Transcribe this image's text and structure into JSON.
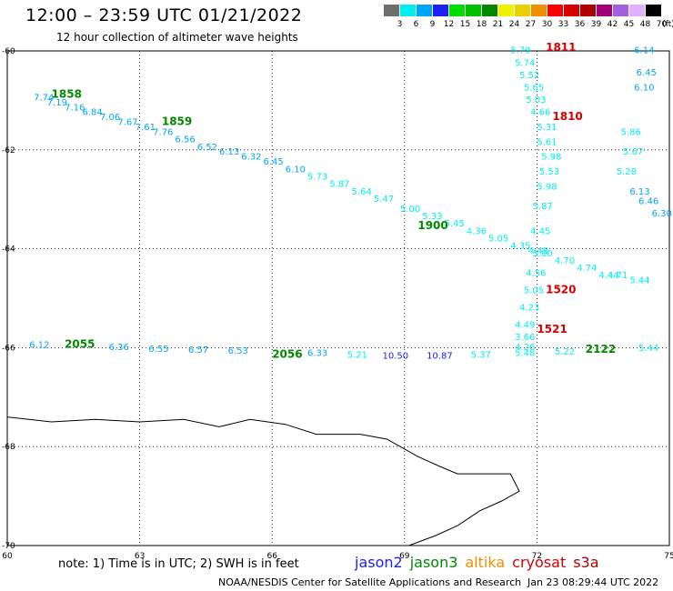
{
  "header": {
    "title": "12:00 – 23:59 UTC 01/21/2022",
    "subtitle": "12 hour collection of altimeter wave heights"
  },
  "color_scale": {
    "unit": "(ft)",
    "swatches": [
      {
        "label": "3",
        "color": "#6e6e6e"
      },
      {
        "label": "6",
        "color": "#00eef0"
      },
      {
        "label": "9",
        "color": "#00a6f5"
      },
      {
        "label": "12",
        "color": "#1a22f0"
      },
      {
        "label": "15",
        "color": "#00dd00"
      },
      {
        "label": "18",
        "color": "#00c000"
      },
      {
        "label": "21",
        "color": "#008800"
      },
      {
        "label": "24",
        "color": "#f0f000"
      },
      {
        "label": "27",
        "color": "#ead000"
      },
      {
        "label": "30",
        "color": "#f09000"
      },
      {
        "label": "33",
        "color": "#ff0000"
      },
      {
        "label": "36",
        "color": "#d60000"
      },
      {
        "label": "39",
        "color": "#b00000"
      },
      {
        "label": "42",
        "color": "#a0007a"
      },
      {
        "label": "45",
        "color": "#a060e0"
      },
      {
        "label": "48",
        "color": "#e0b0ff"
      },
      {
        "label": "70",
        "color": "#000000"
      }
    ]
  },
  "footer": {
    "note": "note:  1) Time is in UTC;  2) SWH is in feet",
    "credit": "NOAA/NESDIS Center for Satellite Applications and Research",
    "updated": "Jan 23 08:29:44 UTC 2022",
    "missions": [
      {
        "name": "jason2",
        "color": "#1a22f0"
      },
      {
        "name": "jason3",
        "color": "#008800"
      },
      {
        "name": "altika",
        "color": "#f09000"
      },
      {
        "name": "cryosat",
        "color": "#d60000"
      },
      {
        "name": "s3a",
        "color": "#b00000"
      }
    ]
  },
  "chart_data": {
    "type": "scatter",
    "xlim": [
      60,
      75
    ],
    "ylim": [
      -70,
      -60
    ],
    "x_ticks": [
      "60",
      "63",
      "66",
      "69",
      "72",
      "75"
    ],
    "y_ticks": [
      "-60",
      "-62",
      "-64",
      "-66",
      "-68",
      "-70"
    ],
    "grid": true,
    "coastline": [
      [
        60,
        -67.4
      ],
      [
        61,
        -67.5
      ],
      [
        62,
        -67.45
      ],
      [
        63,
        -67.5
      ],
      [
        64,
        -67.45
      ],
      [
        64.8,
        -67.6
      ],
      [
        65.5,
        -67.45
      ],
      [
        66.3,
        -67.55
      ],
      [
        67,
        -67.75
      ],
      [
        68,
        -67.75
      ],
      [
        68.6,
        -67.85
      ],
      [
        69.3,
        -68.2
      ],
      [
        69.8,
        -68.4
      ],
      [
        70.2,
        -68.55
      ],
      [
        70.7,
        -68.55
      ],
      [
        71.4,
        -68.55
      ],
      [
        71.6,
        -68.9
      ],
      [
        71.2,
        -69.1
      ],
      [
        70.7,
        -69.3
      ],
      [
        70.2,
        -69.6
      ],
      [
        69.7,
        -69.8
      ],
      [
        69.1,
        -70.0
      ]
    ],
    "tracks": [
      {
        "mission": "jason3",
        "time_labels": [
          {
            "text": "1858",
            "x": 61.0,
            "y": -60.95
          },
          {
            "text": "1859",
            "x": 63.5,
            "y": -61.5
          },
          {
            "text": "1900",
            "x": 69.3,
            "y": -63.6
          }
        ],
        "points": [
          {
            "x": 60.6,
            "y": -61.0,
            "v": "7.74"
          },
          {
            "x": 60.9,
            "y": -61.1,
            "v": "7.19"
          },
          {
            "x": 61.3,
            "y": -61.2,
            "v": "7.16"
          },
          {
            "x": 61.7,
            "y": -61.3,
            "v": "6.84"
          },
          {
            "x": 62.1,
            "y": -61.4,
            "v": "7.06"
          },
          {
            "x": 62.5,
            "y": -61.5,
            "v": "7.67"
          },
          {
            "x": 62.9,
            "y": -61.6,
            "v": "7.61"
          },
          {
            "x": 63.3,
            "y": -61.7,
            "v": "7.76"
          },
          {
            "x": 63.8,
            "y": -61.85,
            "v": "6.56"
          },
          {
            "x": 64.3,
            "y": -62.0,
            "v": "6.52"
          },
          {
            "x": 64.8,
            "y": -62.1,
            "v": "6.13"
          },
          {
            "x": 65.3,
            "y": -62.2,
            "v": "6.32"
          },
          {
            "x": 65.8,
            "y": -62.3,
            "v": "6.45"
          },
          {
            "x": 66.3,
            "y": -62.45,
            "v": "6.10"
          },
          {
            "x": 66.8,
            "y": -62.6,
            "v": "5.73"
          },
          {
            "x": 67.3,
            "y": -62.75,
            "v": "5.87"
          },
          {
            "x": 67.8,
            "y": -62.9,
            "v": "5.64"
          },
          {
            "x": 68.3,
            "y": -63.05,
            "v": "5.47"
          },
          {
            "x": 68.9,
            "y": -63.25,
            "v": "5.00"
          },
          {
            "x": 69.4,
            "y": -63.4,
            "v": "5.33"
          },
          {
            "x": 69.9,
            "y": -63.55,
            "v": "5.45"
          },
          {
            "x": 70.4,
            "y": -63.7,
            "v": "4.36"
          },
          {
            "x": 70.9,
            "y": -63.85,
            "v": "5.05"
          },
          {
            "x": 71.4,
            "y": -64.0,
            "v": "4.35"
          },
          {
            "x": 71.9,
            "y": -64.15,
            "v": "5.00"
          },
          {
            "x": 72.4,
            "y": -64.3,
            "v": "4.70"
          },
          {
            "x": 72.9,
            "y": -64.45,
            "v": "4.74"
          },
          {
            "x": 73.4,
            "y": -64.6,
            "v": "4.44"
          }
        ]
      },
      {
        "mission": "jason3",
        "time_labels": [
          {
            "text": "2055",
            "x": 61.3,
            "y": -66.0
          },
          {
            "text": "2056",
            "x": 66.0,
            "y": -66.2
          },
          {
            "text": "2122",
            "x": 73.1,
            "y": -66.1
          }
        ],
        "points": [
          {
            "x": 60.5,
            "y": -66.0,
            "v": "6.12"
          },
          {
            "x": 62.3,
            "y": -66.05,
            "v": "6.36"
          },
          {
            "x": 63.2,
            "y": -66.08,
            "v": "6.55"
          },
          {
            "x": 64.1,
            "y": -66.1,
            "v": "6.57"
          },
          {
            "x": 65.0,
            "y": -66.12,
            "v": "6.53"
          },
          {
            "x": 66.8,
            "y": -66.17,
            "v": "6.33"
          },
          {
            "x": 67.7,
            "y": -66.2,
            "v": "5.21"
          },
          {
            "x": 68.5,
            "y": -66.22,
            "v": "10.50"
          },
          {
            "x": 69.5,
            "y": -66.22,
            "v": "10.87"
          },
          {
            "x": 70.5,
            "y": -66.2,
            "v": "5.37"
          },
          {
            "x": 71.5,
            "y": -66.17,
            "v": "5.48"
          },
          {
            "x": 72.4,
            "y": -66.14,
            "v": "5.22"
          },
          {
            "x": 74.3,
            "y": -66.07,
            "v": "5.44"
          }
        ]
      },
      {
        "mission": "cryosat",
        "time_labels": [
          {
            "text": "1810",
            "x": 72.35,
            "y": -61.4
          },
          {
            "text": "1811",
            "x": 72.2,
            "y": -60.0
          },
          {
            "text": "1520",
            "x": 72.2,
            "y": -64.9
          },
          {
            "text": "1521",
            "x": 72.0,
            "y": -65.7
          }
        ],
        "points": [
          {
            "x": 71.4,
            "y": -60.05,
            "v": "5.79"
          },
          {
            "x": 71.5,
            "y": -60.3,
            "v": "5.74"
          },
          {
            "x": 71.6,
            "y": -60.55,
            "v": "5.52"
          },
          {
            "x": 71.7,
            "y": -60.8,
            "v": "5.65"
          },
          {
            "x": 71.75,
            "y": -61.05,
            "v": "5.03"
          },
          {
            "x": 71.85,
            "y": -61.3,
            "v": "4.66"
          },
          {
            "x": 72.0,
            "y": -61.6,
            "v": "5.31"
          },
          {
            "x": 72.0,
            "y": -61.9,
            "v": "5.61"
          },
          {
            "x": 72.1,
            "y": -62.2,
            "v": "5.98"
          },
          {
            "x": 72.05,
            "y": -62.5,
            "v": "5.53"
          },
          {
            "x": 72.0,
            "y": -62.8,
            "v": "5.98"
          },
          {
            "x": 71.9,
            "y": -63.2,
            "v": "5.87"
          },
          {
            "x": 71.85,
            "y": -63.7,
            "v": "4.45"
          },
          {
            "x": 71.8,
            "y": -64.1,
            "v": "4.48"
          },
          {
            "x": 71.75,
            "y": -64.55,
            "v": "4.56"
          },
          {
            "x": 71.7,
            "y": -64.9,
            "v": "5.05"
          },
          {
            "x": 71.6,
            "y": -65.25,
            "v": "4.23"
          },
          {
            "x": 71.5,
            "y": -65.6,
            "v": "4.49"
          },
          {
            "x": 71.5,
            "y": -65.85,
            "v": "3.66"
          },
          {
            "x": 71.5,
            "y": -66.05,
            "v": "4.26"
          }
        ]
      },
      {
        "mission": "cryosat",
        "time_labels": [],
        "points": [
          {
            "x": 74.2,
            "y": -60.05,
            "v": "6.14"
          },
          {
            "x": 74.25,
            "y": -60.5,
            "v": "6.45"
          },
          {
            "x": 74.2,
            "y": -60.8,
            "v": "6.10"
          },
          {
            "x": 73.9,
            "y": -61.7,
            "v": "5.86"
          },
          {
            "x": 73.95,
            "y": -62.1,
            "v": "5.67"
          },
          {
            "x": 73.8,
            "y": -62.5,
            "v": "5.28"
          },
          {
            "x": 74.1,
            "y": -62.9,
            "v": "6.13"
          },
          {
            "x": 74.3,
            "y": -63.1,
            "v": "6.46"
          },
          {
            "x": 74.6,
            "y": -63.35,
            "v": "6.30"
          },
          {
            "x": 73.6,
            "y": -64.6,
            "v": "4.71"
          },
          {
            "x": 74.1,
            "y": -64.7,
            "v": "5.44"
          }
        ]
      }
    ]
  }
}
